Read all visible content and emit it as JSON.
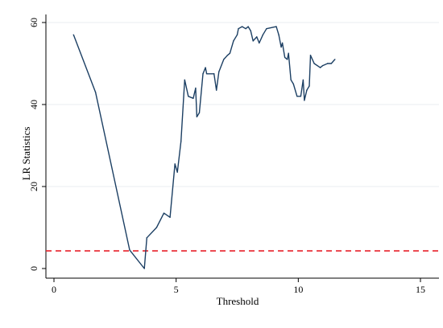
{
  "chart_data": {
    "type": "line",
    "title": "",
    "xlabel": "Threshold",
    "ylabel": "LR Statistics",
    "xlim": [
      0,
      15
    ],
    "ylim": [
      0,
      60
    ],
    "x_ticks": [
      0,
      5,
      10,
      15
    ],
    "x_tick_labels": [
      "0",
      "5",
      "10",
      "15"
    ],
    "y_ticks": [
      0,
      20,
      40,
      60
    ],
    "y_tick_labels": [
      "0",
      "20",
      "40",
      "60"
    ],
    "grid": "horizontal",
    "legend": "none",
    "series": [
      {
        "points": [
          [
            0.8,
            57.0
          ],
          [
            1.7,
            43.0
          ],
          [
            3.1,
            4.5
          ],
          [
            3.7,
            0.0
          ],
          [
            3.8,
            7.5
          ],
          [
            4.2,
            10.0
          ],
          [
            4.5,
            13.5
          ],
          [
            4.75,
            12.5
          ],
          [
            4.95,
            25.5
          ],
          [
            5.05,
            23.5
          ],
          [
            5.2,
            31.0
          ],
          [
            5.35,
            46.0
          ],
          [
            5.5,
            42.0
          ],
          [
            5.7,
            41.5
          ],
          [
            5.8,
            44.0
          ],
          [
            5.85,
            37.0
          ],
          [
            5.95,
            38.0
          ],
          [
            6.1,
            47.5
          ],
          [
            6.2,
            49.0
          ],
          [
            6.25,
            47.5
          ],
          [
            6.55,
            47.5
          ],
          [
            6.65,
            43.5
          ],
          [
            6.75,
            48.0
          ],
          [
            6.95,
            51.0
          ],
          [
            7.1,
            52.0
          ],
          [
            7.2,
            52.5
          ],
          [
            7.35,
            55.5
          ],
          [
            7.5,
            57.0
          ],
          [
            7.55,
            58.5
          ],
          [
            7.7,
            59.0
          ],
          [
            7.85,
            58.5
          ],
          [
            7.95,
            59.0
          ],
          [
            8.05,
            58.0
          ],
          [
            8.15,
            55.5
          ],
          [
            8.3,
            56.5
          ],
          [
            8.4,
            55.0
          ],
          [
            8.55,
            57.0
          ],
          [
            8.7,
            58.5
          ],
          [
            9.1,
            59.0
          ],
          [
            9.2,
            57.0
          ],
          [
            9.3,
            54.0
          ],
          [
            9.35,
            55.0
          ],
          [
            9.45,
            51.5
          ],
          [
            9.55,
            51.0
          ],
          [
            9.6,
            52.5
          ],
          [
            9.7,
            46.0
          ],
          [
            9.8,
            45.0
          ],
          [
            9.95,
            42.0
          ],
          [
            10.1,
            42.0
          ],
          [
            10.2,
            46.0
          ],
          [
            10.25,
            41.0
          ],
          [
            10.35,
            43.5
          ],
          [
            10.45,
            44.5
          ],
          [
            10.5,
            52.0
          ],
          [
            10.65,
            50.0
          ],
          [
            10.9,
            49.0
          ],
          [
            11.0,
            49.5
          ],
          [
            11.2,
            50.0
          ],
          [
            11.35,
            50.0
          ],
          [
            11.5,
            51.0
          ]
        ],
        "color": "#1c3f63"
      }
    ],
    "reference_line": {
      "y": 4.3,
      "color": "#e8202a",
      "style": "dashed"
    }
  }
}
